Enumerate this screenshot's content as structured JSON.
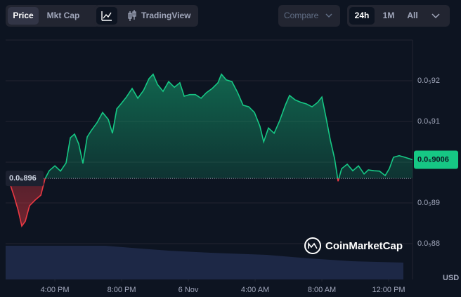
{
  "toolbar": {
    "price": "Price",
    "market_cap": "Mkt Cap",
    "tradingview": "TradingView",
    "compare": "Compare",
    "ranges": [
      "24h",
      "1M",
      "All"
    ]
  },
  "chart_data": {
    "type": "line",
    "x": [
      13.05,
      13.31,
      13.56,
      13.81,
      14.02,
      14.23,
      14.48,
      14.82,
      15.16,
      15.41,
      15.66,
      16.0,
      16.34,
      16.67,
      16.93,
      17.18,
      17.43,
      17.68,
      17.94,
      18.19,
      18.53,
      18.86,
      19.2,
      19.45,
      19.71,
      19.96,
      20.29,
      20.63,
      20.97,
      21.31,
      21.64,
      21.89,
      22.15,
      22.48,
      22.82,
      23.16,
      23.49,
      23.75,
      24.08,
      24.42,
      24.76,
      25.09,
      25.43,
      25.77,
      25.98,
      26.27,
      26.61,
      26.95,
      27.28,
      27.62,
      27.96,
      28.29,
      28.51,
      28.8,
      29.14,
      29.47,
      29.81,
      30.06,
      30.4,
      30.74,
      31.07,
      31.41,
      31.75,
      32.0,
      32.25,
      32.51,
      32.76,
      32.97,
      33.18,
      33.52,
      33.85,
      34.19,
      34.53,
      34.78,
      35.12,
      35.45,
      35.79,
      36.04,
      36.29,
      36.63,
      36.97,
      37.43
    ],
    "series": [
      {
        "color": "#16c784",
        "below_color": "#ea3943",
        "values": [
          8.964e-06,
          8.947e-06,
          8.916e-06,
          8.881e-06,
          8.843e-06,
          8.855e-06,
          8.893e-06,
          8.907e-06,
          8.919e-06,
          8.959e-06,
          8.979e-06,
          8.991e-06,
          8.978e-06,
          8.998e-06,
          9.06e-06,
          9.069e-06,
          9.045e-06,
          8.997e-06,
          9.062e-06,
          9.078e-06,
          9.097e-06,
          9.122e-06,
          9.105e-06,
          9.071e-06,
          9.131e-06,
          9.143e-06,
          9.16e-06,
          9.181e-06,
          9.157e-06,
          9.176e-06,
          9.205e-06,
          9.216e-06,
          9.191e-06,
          9.174e-06,
          9.198e-06,
          9.184e-06,
          9.195e-06,
          9.162e-06,
          9.166e-06,
          9.166e-06,
          9.157e-06,
          9.171e-06,
          9.181e-06,
          9.195e-06,
          9.216e-06,
          9.202e-06,
          9.198e-06,
          9.171e-06,
          9.14e-06,
          9.136e-06,
          9.122e-06,
          9.088e-06,
          9.05e-06,
          9.084e-06,
          9.071e-06,
          9.102e-06,
          9.14e-06,
          9.164e-06,
          9.153e-06,
          9.147e-06,
          9.143e-06,
          9.136e-06,
          9.147e-06,
          9.16e-06,
          9.109e-06,
          9.053e-06,
          9.009e-06,
          8.953e-06,
          8.984e-06,
          8.995e-06,
          8.979e-06,
          8.991e-06,
          8.971e-06,
          8.981e-06,
          8.979e-06,
          8.978e-06,
          8.967e-06,
          8.984e-06,
          9.012e-06,
          9.016e-06,
          9.012e-06,
          9.006e-06
        ]
      }
    ],
    "xlim": [
      13.05,
      37.43
    ],
    "xticks": [
      {
        "value": 16,
        "label": "4:00 PM"
      },
      {
        "value": 20,
        "label": "8:00 PM"
      },
      {
        "value": 24,
        "label": "6 Nov"
      },
      {
        "value": 28,
        "label": "4:00 AM"
      },
      {
        "value": 32,
        "label": "8:00 AM"
      },
      {
        "value": 36,
        "label": "12:00 PM"
      }
    ],
    "ylim": [
      8.712e-06,
      9.3e-06
    ],
    "yticks": [
      {
        "value": 8.8e-06,
        "label": "0.0₅88"
      },
      {
        "value": 8.9e-06,
        "label": "0.0₅89"
      },
      {
        "value": 9e-06,
        "label": "0.0₅90"
      },
      {
        "value": 9.1e-06,
        "label": "0.0₅91"
      },
      {
        "value": 9.2e-06,
        "label": "0.0₅92"
      }
    ],
    "grid": true,
    "baseline": {
      "value": 8.96e-06,
      "label": "0.0₅896"
    },
    "last_price": {
      "value": 9.006e-06,
      "label": "0.0₅9006"
    },
    "currency": "USD",
    "watermark": "CoinMarketCap"
  }
}
